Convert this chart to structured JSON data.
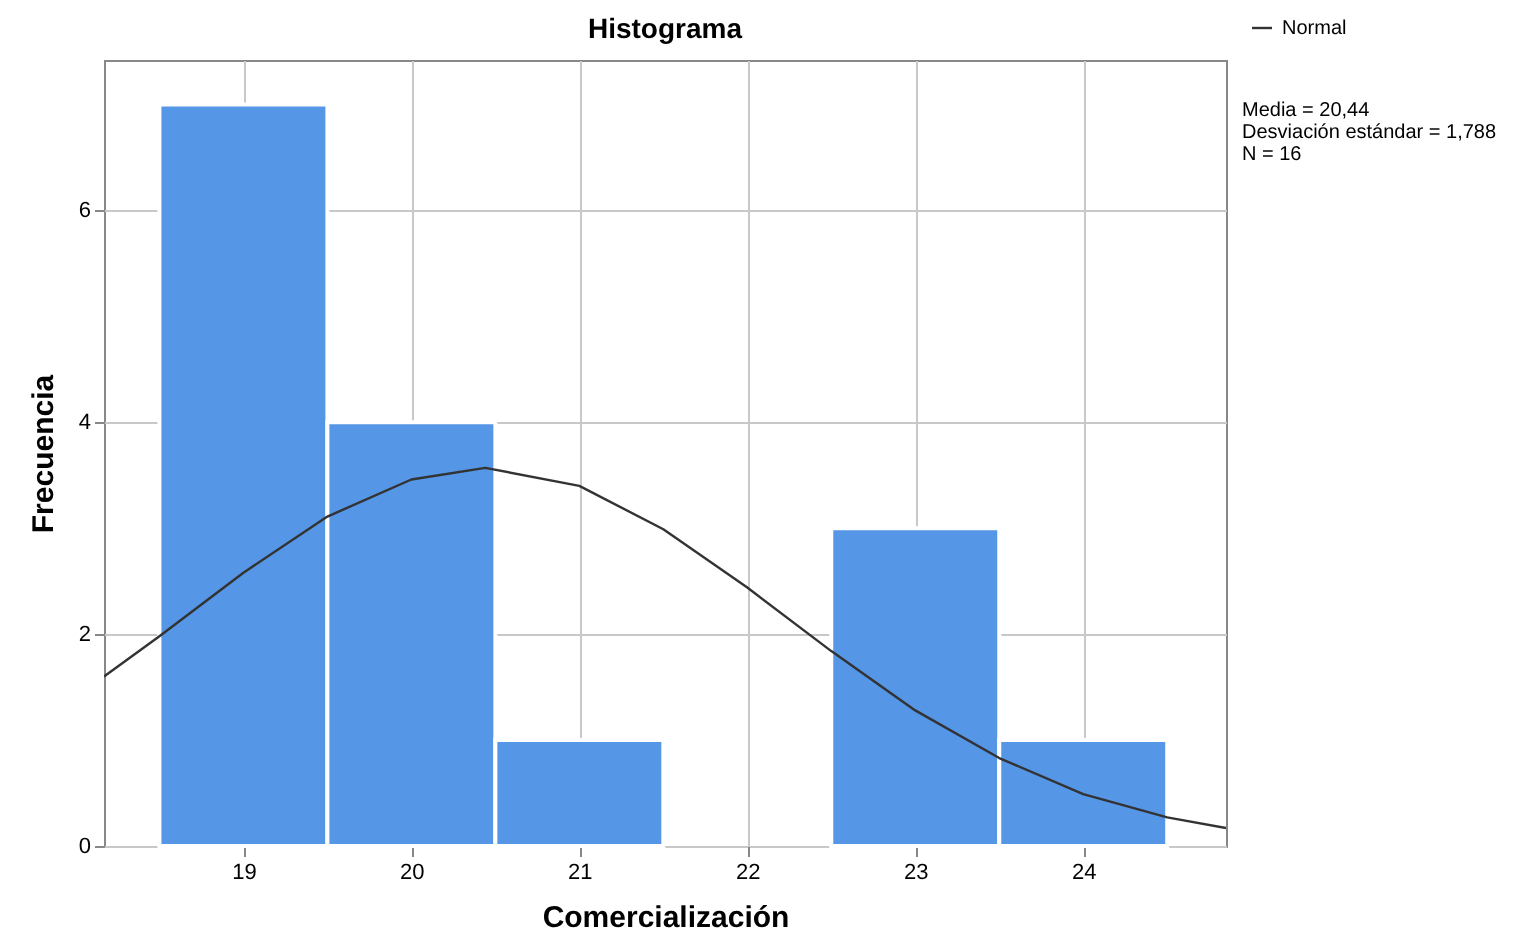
{
  "chart_data": {
    "type": "histogram",
    "title": "Histograma",
    "xlabel": "Comercialización",
    "ylabel": "Frecuencia",
    "bins": [
      18.5,
      19.5,
      20.5,
      21.5,
      22.5,
      23.5,
      24.5
    ],
    "values": [
      7,
      4,
      1,
      0,
      3,
      1
    ],
    "color": "#5596e6",
    "series": [
      {
        "name": "Normal",
        "type": "line",
        "color": "#333333",
        "x": [
          18.17,
          18.5,
          19,
          19.5,
          20,
          20.44,
          21,
          21.5,
          22,
          22.5,
          23,
          23.5,
          24,
          24.5,
          24.85
        ],
        "values": [
          1.6,
          1.98,
          2.58,
          3.11,
          3.46,
          3.57,
          3.4,
          2.99,
          2.44,
          1.84,
          1.28,
          0.83,
          0.49,
          0.27,
          0.17
        ]
      }
    ],
    "xlim": [
      18.17,
      24.85
    ],
    "xticks": [
      19,
      20,
      21,
      22,
      23,
      24
    ],
    "ylim": [
      0,
      7.42
    ],
    "yticks": [
      0,
      2,
      4,
      6
    ],
    "grid": true,
    "legend": "top right",
    "annotations": [
      "Media = 20,44",
      "Desviación estándar = 1,788",
      "N = 16"
    ]
  }
}
